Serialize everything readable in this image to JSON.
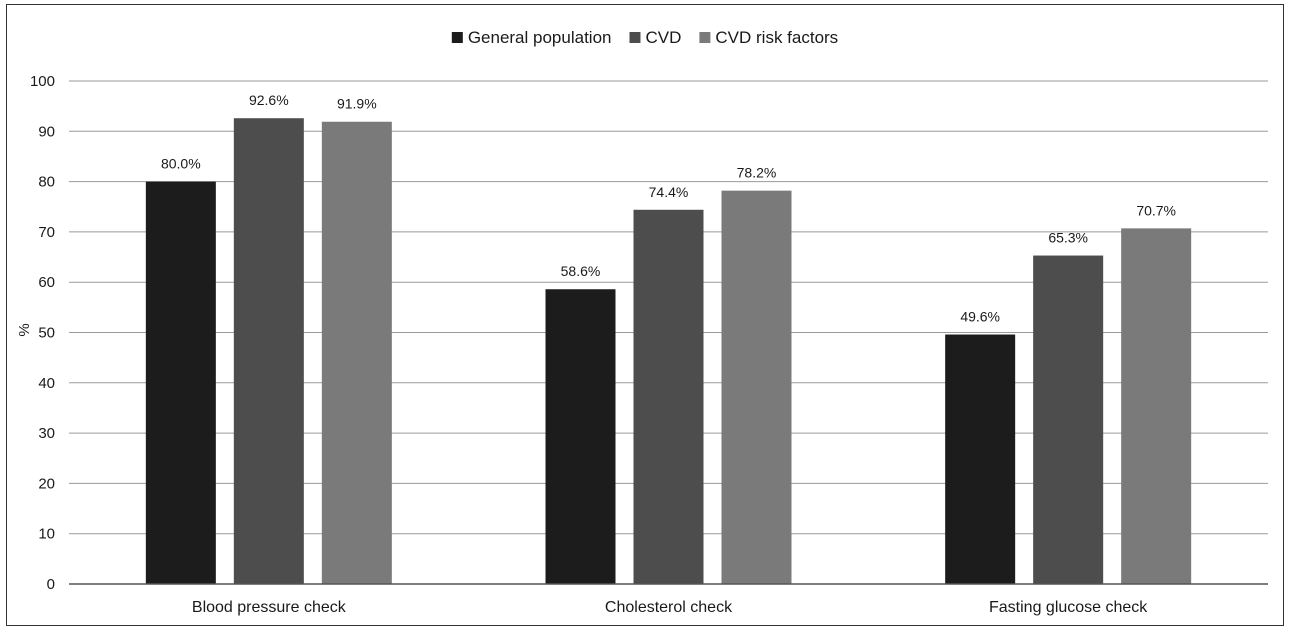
{
  "chart_data": {
    "type": "bar",
    "title": "",
    "xlabel": "",
    "ylabel": "%",
    "ylim": [
      0,
      100
    ],
    "yticks": [
      0,
      10,
      20,
      30,
      40,
      50,
      60,
      70,
      80,
      90,
      100
    ],
    "grid": true,
    "legend_position": "top-center",
    "categories": [
      "Blood pressure check",
      "Cholesterol check",
      "Fasting glucose check"
    ],
    "series": [
      {
        "name": "General population",
        "color": "#1c1c1c",
        "values": [
          80.0,
          58.6,
          49.6
        ],
        "labels": [
          "80.0%",
          "58.6%",
          "49.6%"
        ]
      },
      {
        "name": "CVD",
        "color": "#4d4d4d",
        "values": [
          92.6,
          74.4,
          65.3
        ],
        "labels": [
          "92.6%",
          "74.4%",
          "65.3%"
        ]
      },
      {
        "name": "CVD risk factors",
        "color": "#7a7a7a",
        "values": [
          91.9,
          78.2,
          70.7
        ],
        "labels": [
          "91.9%",
          "78.2%",
          "70.7%"
        ]
      }
    ]
  }
}
